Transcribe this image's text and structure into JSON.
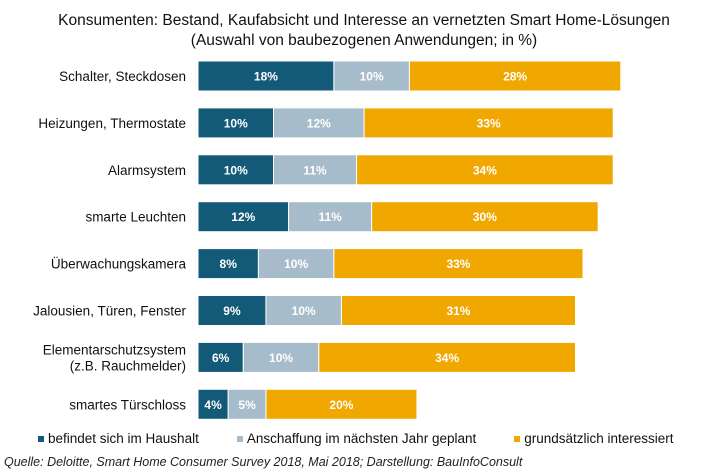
{
  "chart_data": {
    "type": "bar",
    "orientation": "horizontal",
    "stacked": true,
    "title": "Konsumenten:  Bestand, Kaufabsicht und  Interesse an vernetzten Smart Home-Lösungen",
    "subtitle": "(Auswahl  von baubezogenen  Anwendungen;  in %)",
    "categories": [
      "Schalter, Steckdosen",
      "Heizungen, Thermostate",
      "Alarmsystem",
      "smarte Leuchten",
      "Überwachungskamera",
      "Jalousien, Türen, Fenster",
      "Elementarschutzsystem\n(z.B. Rauchmelder)",
      "smartes Türschloss"
    ],
    "series": [
      {
        "name": "befindet sich im Haushalt",
        "color": "#135a78",
        "values": [
          18,
          10,
          10,
          12,
          8,
          9,
          6,
          4
        ]
      },
      {
        "name": "Anschaffung im nächsten Jahr geplant",
        "color": "#a7bccb",
        "values": [
          10,
          12,
          11,
          11,
          10,
          10,
          10,
          5
        ]
      },
      {
        "name": "grundsätzlich interessiert",
        "color": "#f0a800",
        "values": [
          28,
          33,
          34,
          30,
          33,
          31,
          34,
          20
        ]
      }
    ],
    "unit": "%",
    "legend_position": "bottom",
    "grid": false
  },
  "source": "Quelle: Deloitte, Smart Home Consumer Survey 2018, Mai 2018; Darstellung: BauInfoConsult"
}
